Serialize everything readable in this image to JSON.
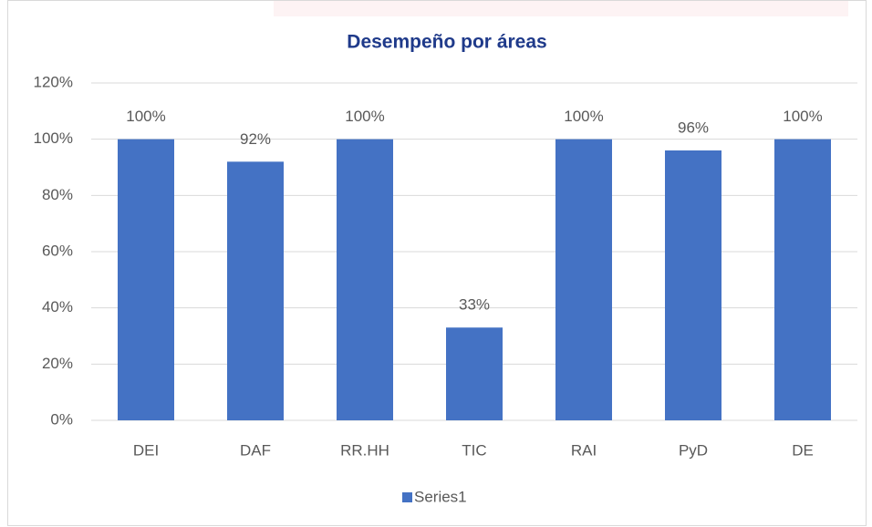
{
  "chart_data": {
    "type": "bar",
    "title": "Desempeño por áreas",
    "categories": [
      "DEI",
      "DAF",
      "RR.HH",
      "TIC",
      "RAI",
      "PyD",
      "DE"
    ],
    "series": [
      {
        "name": "Series1",
        "color": "#4472c4",
        "values": [
          100,
          92,
          100,
          33,
          100,
          96,
          100
        ],
        "value_labels": [
          "100%",
          "92%",
          "100%",
          "33%",
          "100%",
          "96%",
          "100%"
        ]
      }
    ],
    "ylim": [
      0,
      120
    ],
    "yticks": [
      {
        "value": 0,
        "label": "0%"
      },
      {
        "value": 20,
        "label": "20%"
      },
      {
        "value": 40,
        "label": "40%"
      },
      {
        "value": 60,
        "label": "60%"
      },
      {
        "value": 80,
        "label": "80%"
      },
      {
        "value": 100,
        "label": "100%"
      },
      {
        "value": 120,
        "label": "120%"
      }
    ],
    "grid": true,
    "legend": "bottom"
  }
}
